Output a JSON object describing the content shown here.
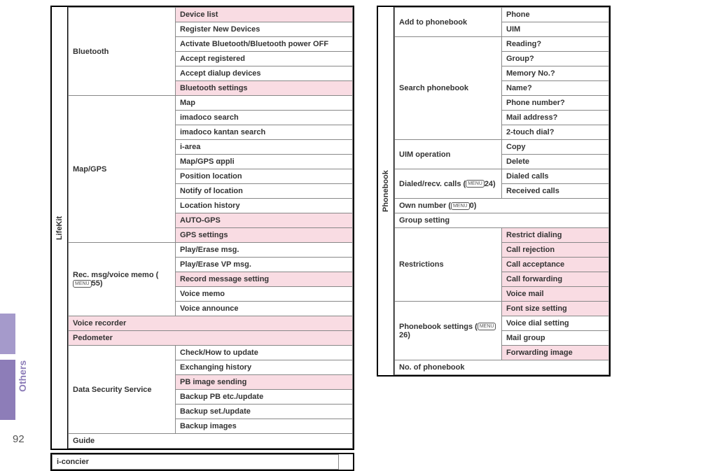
{
  "page_number": "92",
  "side_label": "Others",
  "left_column": {
    "tab": "LifeKit",
    "sections": [
      {
        "group": "Bluetooth",
        "items": [
          {
            "label": "Device list",
            "pink": true
          },
          {
            "label": "Register New Devices"
          },
          {
            "label": "Activate Bluetooth/Bluetooth power OFF"
          },
          {
            "label": "Accept registered"
          },
          {
            "label": "Accept dialup devices"
          },
          {
            "label": "Bluetooth settings",
            "pink": true
          }
        ]
      },
      {
        "group": "Map/GPS",
        "items": [
          {
            "label": "Map"
          },
          {
            "label": "imadoco search"
          },
          {
            "label": "imadoco kantan search"
          },
          {
            "label": "i-area"
          },
          {
            "label": "Map/GPS αppli"
          },
          {
            "label": "Position location"
          },
          {
            "label": "Notify of location"
          },
          {
            "label": "Location history"
          },
          {
            "label": "AUTO-GPS",
            "pink": true
          },
          {
            "label": "GPS settings",
            "pink": true
          }
        ]
      },
      {
        "group": "Rec. msg/voice memo (",
        "group_icon": "MENU",
        "group_suffix": "55)",
        "items": [
          {
            "label": "Play/Erase msg."
          },
          {
            "label": "Play/Erase VP msg."
          },
          {
            "label": "Record message setting",
            "pink": true
          },
          {
            "label": "Voice memo"
          },
          {
            "label": "Voice announce"
          }
        ]
      },
      {
        "span_label": "Voice recorder",
        "span_pink": true
      },
      {
        "span_label": "Pedometer",
        "span_pink": true
      },
      {
        "group": "Data Security Service",
        "items": [
          {
            "label": "Check/How to update"
          },
          {
            "label": "Exchanging history"
          },
          {
            "label": "PB image sending",
            "pink": true
          },
          {
            "label": "Backup PB etc./update"
          },
          {
            "label": "Backup set./update"
          },
          {
            "label": "Backup images"
          }
        ]
      },
      {
        "span_label": "Guide"
      }
    ],
    "below_card": "i-concier"
  },
  "right_column": {
    "tab": "Phonebook",
    "sections": [
      {
        "group": "Add to phonebook",
        "items": [
          {
            "label": "Phone"
          },
          {
            "label": "UIM"
          }
        ]
      },
      {
        "group": "Search phonebook",
        "items": [
          {
            "label": "Reading?"
          },
          {
            "label": "Group?"
          },
          {
            "label": "Memory No.?"
          },
          {
            "label": "Name?"
          },
          {
            "label": "Phone number?"
          },
          {
            "label": "Mail address?"
          },
          {
            "label": "2-touch dial?"
          }
        ]
      },
      {
        "group": "UIM operation",
        "items": [
          {
            "label": "Copy"
          },
          {
            "label": "Delete"
          }
        ]
      },
      {
        "group": "Dialed/recv. calls (",
        "group_icon": "MENU",
        "group_suffix": "24)",
        "items": [
          {
            "label": "Dialed calls"
          },
          {
            "label": "Received calls"
          }
        ]
      },
      {
        "span_label": "Own number (",
        "span_icon": "MENU",
        "span_suffix": "0)"
      },
      {
        "span_label": "Group setting"
      },
      {
        "group": "Restrictions",
        "items": [
          {
            "label": "Restrict dialing",
            "pink": true
          },
          {
            "label": "Call rejection",
            "pink": true
          },
          {
            "label": "Call acceptance",
            "pink": true
          },
          {
            "label": "Call forwarding",
            "pink": true
          },
          {
            "label": "Voice mail",
            "pink": true
          }
        ]
      },
      {
        "group": "Phonebook settings (",
        "group_icon": "MENU",
        "group_suffix": "26)",
        "items": [
          {
            "label": "Font size setting",
            "pink": true
          },
          {
            "label": "Voice dial setting"
          },
          {
            "label": "Mail group"
          },
          {
            "label": "Forwarding image",
            "pink": true
          }
        ]
      },
      {
        "span_label": "No. of phonebook"
      }
    ]
  },
  "col_widths": {
    "left_group": 140,
    "left_item": 240,
    "right_group": 140,
    "right_item": 140
  }
}
